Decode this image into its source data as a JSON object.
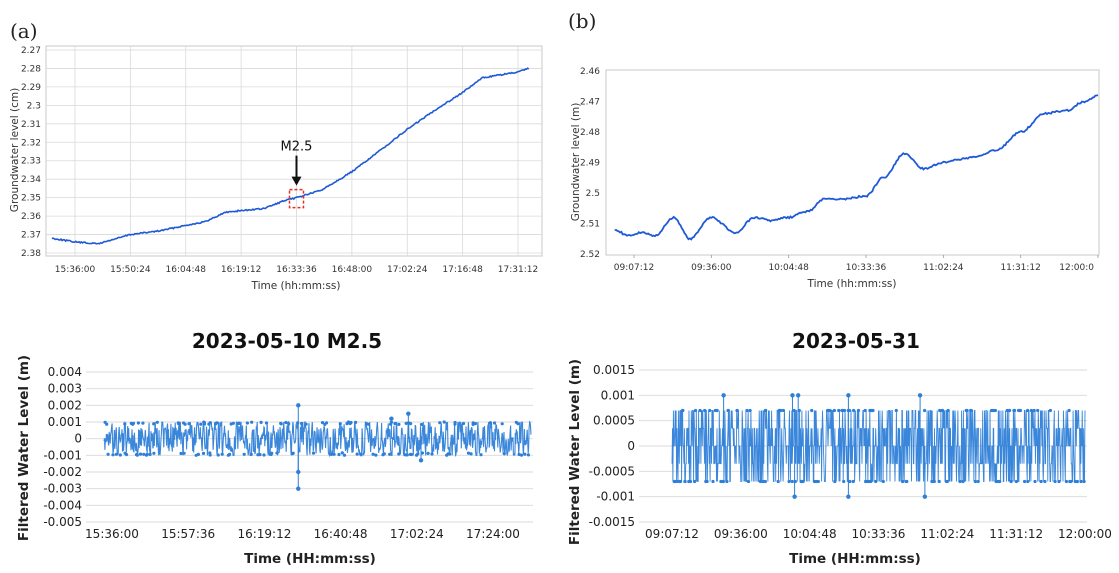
{
  "colors": {
    "series": "#1f5ad6",
    "filtered": "#2e7fd8",
    "marker": "#e0322c",
    "grid": "#d9d9d9"
  },
  "panel_labels": {
    "a": "(a)",
    "b": "(b)"
  },
  "chart_data": [
    {
      "id": "a_top",
      "type": "line",
      "title": "",
      "xlabel": "Time (hh:mm:ss)",
      "ylabel": "Groundwater level (cm)",
      "x_ticks": [
        "15:36:00",
        "15:50:24",
        "16:04:48",
        "16:19:12",
        "16:33:36",
        "16:48:00",
        "17:02:24",
        "17:16:48",
        "17:31:12"
      ],
      "y_ticks": [
        "2.27",
        "2.28",
        "2.29",
        "2.3",
        "2.31",
        "2.32",
        "2.33",
        "2.34",
        "2.35",
        "2.36",
        "2.37",
        "2.38"
      ],
      "ylim": [
        2.27,
        2.38
      ],
      "y_inverted": true,
      "grid": true,
      "annotation": {
        "text": "M2.5",
        "time": "16:33:36",
        "value": 2.35
      },
      "series": [
        {
          "x": [
            "15:30:00",
            "15:36:00",
            "15:42:00",
            "15:50:24",
            "15:58:00",
            "16:04:48",
            "16:10:00",
            "16:15:00",
            "16:19:12",
            "16:25:00",
            "16:30:00",
            "16:33:36",
            "16:40:00",
            "16:48:00",
            "16:55:00",
            "17:02:24",
            "17:10:00",
            "17:16:48",
            "17:22:00",
            "17:31:12",
            "17:34:00"
          ],
          "values": [
            2.372,
            2.374,
            2.375,
            2.37,
            2.368,
            2.365,
            2.363,
            2.358,
            2.357,
            2.356,
            2.352,
            2.35,
            2.346,
            2.336,
            2.325,
            2.313,
            2.302,
            2.293,
            2.285,
            2.282,
            2.28
          ]
        }
      ]
    },
    {
      "id": "b_top",
      "type": "line",
      "title": "",
      "xlabel": "Time (hh:mm:ss)",
      "ylabel": "Groundwater level (m)",
      "x_ticks": [
        "09:07:12",
        "09:36:00",
        "10:04:48",
        "10:33:36",
        "11:02:24",
        "11:31:12",
        "12:00:0"
      ],
      "y_ticks": [
        "2.46",
        "2.47",
        "2.48",
        "2.49",
        "2.5",
        "2.51",
        "2.52"
      ],
      "ylim": [
        2.46,
        2.52
      ],
      "y_inverted": true,
      "grid": false,
      "series": [
        {
          "x": [
            "09:00:00",
            "09:05:00",
            "09:10:00",
            "09:15:00",
            "09:22:00",
            "09:28:00",
            "09:36:00",
            "09:45:00",
            "09:52:00",
            "09:58:00",
            "10:04:48",
            "10:12:00",
            "10:18:00",
            "10:25:00",
            "10:33:36",
            "10:40:00",
            "10:48:00",
            "10:55:00",
            "11:02:24",
            "11:08:00",
            "11:15:00",
            "11:22:00",
            "11:31:12",
            "11:40:00",
            "11:48:00",
            "11:55:00",
            "12:00:00"
          ],
          "values": [
            2.512,
            2.514,
            2.513,
            2.514,
            2.508,
            2.515,
            2.508,
            2.513,
            2.508,
            2.509,
            2.508,
            2.506,
            2.502,
            2.502,
            2.501,
            2.495,
            2.487,
            2.492,
            2.49,
            2.489,
            2.488,
            2.486,
            2.48,
            2.474,
            2.473,
            2.47,
            2.468
          ]
        }
      ]
    },
    {
      "id": "a_bottom",
      "type": "scatter",
      "title": "2023-05-10  M2.5",
      "xlabel": "Time (HH:mm:ss)",
      "ylabel": "Filtered Water Level (m)",
      "x_ticks": [
        "15:36:00",
        "15:57:36",
        "16:19:12",
        "16:40:48",
        "17:02:24",
        "17:24:00"
      ],
      "y_ticks": [
        "0.004",
        "0.003",
        "0.002",
        "0.001",
        "0",
        "-0.001",
        "-0.002",
        "-0.003",
        "-0.004",
        "-0.005"
      ],
      "ylim": [
        -0.005,
        0.004
      ],
      "grid": true,
      "series": [
        {
          "band": [
            -0.001,
            0.001
          ],
          "outliers": [
            {
              "x": "16:28:48",
              "y": 0.002
            },
            {
              "x": "16:28:48",
              "y": -0.003
            },
            {
              "x": "16:28:48",
              "y": -0.002
            },
            {
              "x": "17:00:00",
              "y": 0.0015
            },
            {
              "x": "16:55:12",
              "y": 0.0012
            },
            {
              "x": "17:03:36",
              "y": -0.0013
            }
          ]
        }
      ]
    },
    {
      "id": "b_bottom",
      "type": "scatter",
      "title": "2023-05-31",
      "xlabel": "Time (HH:mm:ss)",
      "ylabel": "Filtered Water Level (m)",
      "x_ticks": [
        "09:07:12",
        "09:36:00",
        "10:04:48",
        "10:33:36",
        "11:02:24",
        "11:31:12",
        "12:00:00"
      ],
      "y_ticks": [
        "0.0015",
        "0.001",
        "0.0005",
        "0",
        "-0.0005",
        "-0.001",
        "-0.0015"
      ],
      "ylim": [
        -0.0015,
        0.0015
      ],
      "grid": true,
      "series": [
        {
          "band": [
            -0.0007,
            0.0007
          ],
          "outliers": [
            {
              "x": "09:28:48",
              "y": 0.001
            },
            {
              "x": "09:57:36",
              "y": 0.001
            },
            {
              "x": "09:58:30",
              "y": -0.001
            },
            {
              "x": "10:00:00",
              "y": 0.001
            },
            {
              "x": "10:21:00",
              "y": 0.001
            },
            {
              "x": "10:21:00",
              "y": -0.001
            },
            {
              "x": "10:51:00",
              "y": 0.001
            },
            {
              "x": "10:53:00",
              "y": -0.001
            }
          ]
        }
      ]
    }
  ]
}
